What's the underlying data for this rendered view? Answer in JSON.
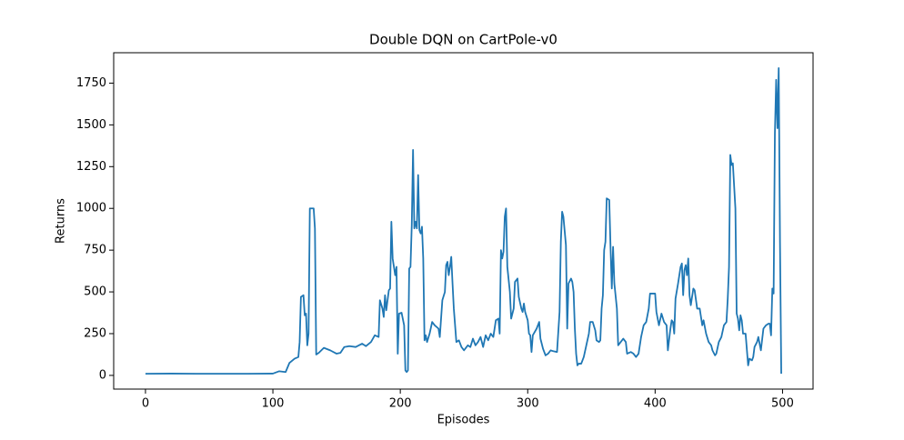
{
  "chart_data": {
    "type": "line",
    "title": "Double DQN on CartPole-v0",
    "x_label": "Episodes",
    "y_label": "Returns",
    "xlim": [
      -24.95,
      523.95
    ],
    "ylim": [
      -82,
      1932
    ],
    "xticks": [
      0,
      100,
      200,
      300,
      400,
      500
    ],
    "yticks": [
      0,
      250,
      500,
      750,
      1000,
      1250,
      1500,
      1750
    ],
    "series": [
      {
        "name": "Returns",
        "color": "#1f77b4",
        "x": [
          0,
          20,
          40,
          60,
          80,
          100,
          105,
          110,
          113,
          117,
          120,
          121,
          122,
          124,
          125,
          126,
          127,
          128,
          129,
          131,
          132,
          133,
          134,
          136,
          140,
          145,
          150,
          153,
          156,
          160,
          165,
          170,
          173,
          177,
          180,
          183,
          184,
          186,
          187,
          188,
          189,
          191,
          192,
          193,
          194,
          196,
          197,
          198,
          199,
          201,
          203,
          204,
          205,
          206,
          207,
          208,
          209,
          210,
          211,
          212,
          213,
          214,
          215,
          216,
          217,
          218,
          219,
          220,
          221,
          223,
          225,
          227,
          230,
          231,
          233,
          235,
          236,
          237,
          238,
          239,
          240,
          241,
          242,
          244,
          246,
          248,
          250,
          253,
          255,
          257,
          259,
          261,
          263,
          265,
          267,
          269,
          271,
          273,
          275,
          277,
          278,
          279,
          280,
          281,
          282,
          283,
          284,
          286,
          287,
          289,
          290,
          292,
          293,
          295,
          296,
          297,
          298,
          300,
          301,
          302,
          303,
          304,
          307,
          309,
          310,
          312,
          314,
          316,
          318,
          320,
          323,
          325,
          326,
          327,
          328,
          330,
          331,
          332,
          334,
          335,
          336,
          337,
          338,
          339,
          340,
          342,
          344,
          346,
          348,
          349,
          351,
          353,
          354,
          356,
          357,
          358,
          359,
          360,
          361,
          362,
          364,
          365,
          366,
          367,
          368,
          370,
          371,
          373,
          375,
          377,
          378,
          381,
          383,
          385,
          387,
          389,
          391,
          393,
          395,
          396,
          398,
          400,
          401,
          403,
          405,
          407,
          409,
          410,
          412,
          413,
          414,
          415,
          416,
          418,
          420,
          421,
          422,
          423,
          424,
          425,
          426,
          427,
          428,
          430,
          431,
          433,
          435,
          437,
          438,
          440,
          442,
          444,
          445,
          447,
          448,
          450,
          452,
          454,
          456,
          457,
          458,
          459,
          460,
          461,
          463,
          464,
          465,
          466,
          467,
          468,
          469,
          471,
          473,
          474,
          476,
          477,
          478,
          480,
          481,
          483,
          485,
          487,
          489,
          490,
          491,
          492,
          493,
          494,
          495,
          496,
          497,
          498,
          499
        ],
        "values": [
          10,
          11,
          10,
          10,
          10,
          11,
          25,
          20,
          75,
          100,
          110,
          200,
          470,
          480,
          360,
          370,
          180,
          250,
          1000,
          1000,
          1000,
          880,
          125,
          135,
          165,
          150,
          130,
          135,
          170,
          175,
          170,
          190,
          175,
          200,
          240,
          230,
          450,
          400,
          350,
          480,
          390,
          510,
          520,
          920,
          700,
          600,
          650,
          130,
          370,
          375,
          300,
          30,
          20,
          30,
          640,
          650,
          900,
          1350,
          880,
          920,
          880,
          1200,
          870,
          850,
          890,
          700,
          210,
          240,
          200,
          250,
          320,
          300,
          280,
          230,
          450,
          500,
          660,
          680,
          600,
          650,
          710,
          550,
          400,
          200,
          210,
          170,
          150,
          180,
          170,
          220,
          180,
          200,
          230,
          170,
          240,
          210,
          250,
          230,
          330,
          340,
          250,
          750,
          700,
          740,
          950,
          1000,
          650,
          500,
          340,
          400,
          560,
          580,
          470,
          400,
          380,
          430,
          380,
          330,
          250,
          240,
          140,
          240,
          280,
          320,
          220,
          160,
          120,
          130,
          150,
          145,
          140,
          380,
          800,
          980,
          950,
          780,
          280,
          550,
          580,
          560,
          500,
          280,
          130,
          60,
          70,
          70,
          110,
          180,
          250,
          320,
          320,
          270,
          210,
          200,
          210,
          400,
          480,
          750,
          800,
          1060,
          1050,
          770,
          520,
          770,
          550,
          400,
          180,
          200,
          220,
          200,
          130,
          140,
          130,
          110,
          130,
          230,
          300,
          320,
          400,
          490,
          490,
          490,
          380,
          300,
          370,
          320,
          300,
          150,
          280,
          330,
          320,
          250,
          460,
          550,
          650,
          670,
          480,
          630,
          660,
          600,
          700,
          480,
          420,
          520,
          510,
          400,
          400,
          300,
          330,
          250,
          200,
          180,
          150,
          120,
          130,
          200,
          230,
          300,
          320,
          460,
          650,
          1320,
          1260,
          1270,
          1000,
          370,
          340,
          270,
          360,
          330,
          250,
          250,
          60,
          100,
          90,
          110,
          170,
          200,
          230,
          150,
          280,
          300,
          310,
          310,
          240,
          520,
          490,
          1450,
          1770,
          1480,
          1840,
          800,
          10
        ]
      }
    ]
  }
}
